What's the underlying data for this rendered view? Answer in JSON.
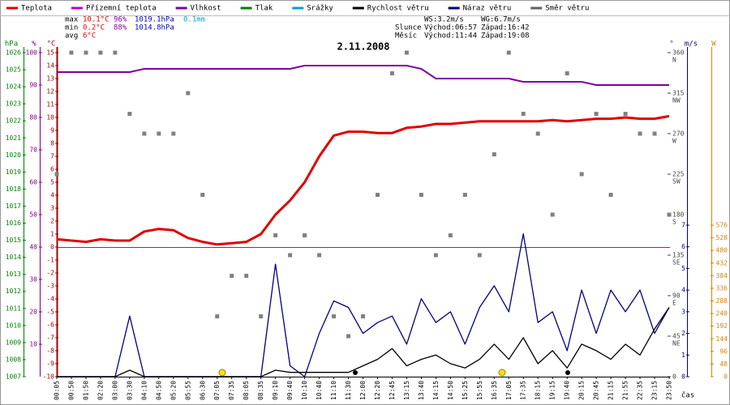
{
  "chart_data": {
    "type": "line",
    "title": "2.11.2008",
    "xlabel": "čas",
    "legend": [
      {
        "name": "Teplota",
        "color": "#e00000"
      },
      {
        "name": "Přízemní teplota",
        "color": "#c000c0"
      },
      {
        "name": "Vlhkost",
        "color": "#8000a0"
      },
      {
        "name": "Tlak",
        "color": "#008000"
      },
      {
        "name": "Srážky",
        "color": "#00a0d0"
      },
      {
        "name": "Rychlost větru",
        "color": "#000000"
      },
      {
        "name": "Náraz větru",
        "color": "#000080"
      },
      {
        "name": "Směr větru",
        "color": "#606060"
      }
    ],
    "stats": [
      [
        "max",
        "10.1°C",
        "96%",
        "1019.1hPa",
        "0.1mm"
      ],
      [
        "min",
        "0.2°C",
        "88%",
        "1014.8hPa"
      ],
      [
        "avg",
        "6°C"
      ]
    ],
    "info": [
      "WS:3.2m/s",
      "WG:6.7m/s",
      "Slunce",
      "Východ:06:57",
      "Západ:16:42",
      "Měsíc",
      "Východ:11:44",
      "Západ:19:08"
    ],
    "categories": [
      "00:05",
      "00:50",
      "01:50",
      "02:20",
      "03:00",
      "03:30",
      "04:10",
      "04:50",
      "05:20",
      "05:55",
      "06:30",
      "07:05",
      "07:35",
      "08:05",
      "08:35",
      "09:10",
      "09:40",
      "10:10",
      "10:40",
      "11:10",
      "11:30",
      "12:00",
      "12:20",
      "12:45",
      "13:15",
      "13:40",
      "14:15",
      "14:50",
      "15:25",
      "15:55",
      "16:35",
      "17:05",
      "17:35",
      "18:15",
      "19:15",
      "19:40",
      "20:15",
      "20:45",
      "21:15",
      "21:55",
      "22:35",
      "23:15",
      "23:50"
    ],
    "ylabel": "°C",
    "ylim": [
      -10,
      15
    ],
    "yticks": [
      15,
      14,
      13,
      12,
      11,
      10,
      9,
      8,
      7,
      6,
      5,
      4,
      3,
      2,
      1,
      0,
      -1,
      -2,
      -3,
      -4,
      -5,
      -6,
      -7,
      -8,
      -9,
      -10
    ],
    "humidity_axis": {
      "label": "%",
      "lim": [
        0,
        100
      ],
      "ticks": [
        100,
        90,
        80,
        70,
        60,
        50,
        40,
        30,
        20,
        10
      ]
    },
    "pressure_axis": {
      "label": "hPa",
      "lim": [
        1007,
        1026
      ],
      "ticks": [
        1026,
        1025,
        1024,
        1023,
        1022,
        1021,
        1020,
        1019,
        1018,
        1017,
        1016,
        1015,
        1014,
        1013,
        1012,
        1011,
        1010,
        1009,
        1008,
        1007
      ]
    },
    "direction_axis": {
      "label": "°",
      "lim": [
        0,
        360
      ],
      "ticks": [
        360,
        315,
        270,
        225,
        180,
        135,
        90,
        45,
        0
      ],
      "names": [
        "N",
        "NW",
        "W",
        "SW",
        "S",
        "SE",
        "E",
        "NE"
      ]
    },
    "y2label": "m/s",
    "y2lim": [
      0,
      7
    ],
    "y2ticks": [
      0,
      1,
      2,
      3,
      4,
      5,
      6,
      7
    ],
    "radiation_axis": {
      "label": "W",
      "lim": [
        0,
        576
      ],
      "ticks": [
        0,
        48,
        96,
        144,
        192,
        240,
        288,
        336,
        384,
        432,
        480,
        528,
        576
      ]
    },
    "series": [
      {
        "name": "Teplota",
        "color": "#e00000",
        "axis": "y",
        "values": [
          0.6,
          0.5,
          0.4,
          0.6,
          0.5,
          0.5,
          1.2,
          1.4,
          1.3,
          0.7,
          0.4,
          0.2,
          0.3,
          0.4,
          1.0,
          2.5,
          3.6,
          5.0,
          7.0,
          8.6,
          8.9,
          8.9,
          8.8,
          8.8,
          9.2,
          9.3,
          9.5,
          9.5,
          9.6,
          9.7,
          9.7,
          9.7,
          9.7,
          9.7,
          9.8,
          9.7,
          9.8,
          9.9,
          9.9,
          10.0,
          9.9,
          9.9,
          10.1
        ]
      },
      {
        "name": "Vlhkost",
        "color": "#8000a0",
        "axis": "humidity",
        "values": [
          94,
          94,
          94,
          94,
          94,
          94,
          95,
          95,
          95,
          95,
          95,
          95,
          95,
          95,
          95,
          95,
          95,
          96,
          96,
          96,
          96,
          96,
          96,
          96,
          96,
          95,
          92,
          92,
          92,
          92,
          92,
          92,
          91,
          91,
          91,
          91,
          91,
          90,
          90,
          90,
          90,
          90,
          90
        ]
      },
      {
        "name": "Náraz větru",
        "color": "#000080",
        "axis": "y2",
        "values": [
          0,
          0,
          0,
          0,
          0,
          2.8,
          0,
          0,
          0,
          0,
          0,
          0,
          0,
          0,
          0,
          5.2,
          0.5,
          0,
          2.0,
          3.5,
          3.2,
          2.0,
          2.5,
          2.8,
          1.5,
          3.6,
          2.5,
          3.0,
          1.5,
          3.2,
          4.2,
          3.0,
          6.6,
          2.5,
          3.0,
          1.2,
          4.0,
          2.0,
          4.0,
          3.0,
          4.0,
          2.0,
          3.2
        ]
      },
      {
        "name": "Rychlost větru",
        "color": "#000000",
        "axis": "y2",
        "values": [
          0,
          0,
          0,
          0,
          0,
          0.3,
          0,
          0,
          0,
          0,
          0,
          0,
          0,
          0,
          0,
          0.3,
          0.2,
          0.2,
          0.2,
          0.2,
          0.2,
          0.5,
          0.8,
          1.3,
          0.5,
          0.8,
          1.0,
          0.6,
          0.4,
          0.8,
          1.5,
          0.8,
          1.8,
          0.6,
          1.2,
          0.4,
          1.5,
          1.2,
          0.8,
          1.5,
          1.0,
          2.2,
          3.2
        ]
      },
      {
        "name": "Směr větru",
        "color": "#808080",
        "axis": "direction",
        "mark": "square",
        "values": [
          225,
          360,
          360,
          360,
          360,
          292,
          270,
          270,
          270,
          315,
          202,
          67,
          112,
          112,
          67,
          157,
          135,
          157,
          135,
          67,
          45,
          67,
          202,
          337,
          360,
          202,
          135,
          157,
          202,
          135,
          247,
          360,
          292,
          270,
          180,
          337,
          225,
          292,
          202,
          292,
          270,
          270,
          180
        ]
      }
    ]
  }
}
